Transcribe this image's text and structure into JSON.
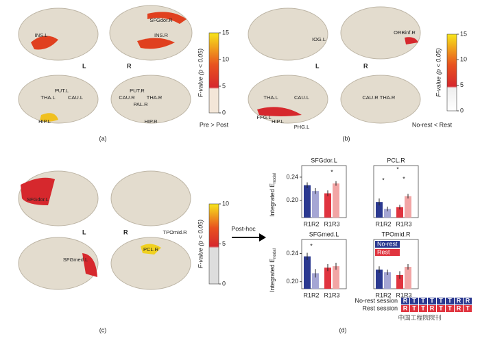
{
  "panels": {
    "a": {
      "tag": "(a)",
      "side_left": "L",
      "side_right": "R",
      "regions": [
        "INS.L",
        "SFGdor.R",
        "INS.R",
        "PUT.L",
        "THA.L",
        "CAU.L",
        "HIP.L",
        "PUT.R",
        "CAU.R",
        "THA.R",
        "PAL.R",
        "HIP.R"
      ],
      "colorbar": {
        "label": "F-value (p < 0.05)",
        "ticks": [
          0,
          5,
          10,
          15
        ],
        "lim": [
          0,
          15
        ]
      },
      "caption": "Pre > Post"
    },
    "b": {
      "tag": "(b)",
      "side_left": "L",
      "side_right": "R",
      "regions": [
        "IOG.L",
        "ORBinf.R",
        "THA.L",
        "CAU.L",
        "FFG.L",
        "HIP.L",
        "PHG.L",
        "CAU.R",
        "THA.R"
      ],
      "colorbar": {
        "label": "F-value (p < 0.05)",
        "ticks": [
          0,
          5,
          10,
          15
        ],
        "lim": [
          0,
          15
        ]
      },
      "caption": "No-rest < Rest"
    },
    "c": {
      "tag": "(c)",
      "side_left": "L",
      "side_right": "R",
      "regions": [
        "SFGdor.L",
        "TPOmid.R",
        "SFGmed.L",
        "PCL.R"
      ],
      "colorbar": {
        "label": "F-value (p < 0.05)",
        "ticks": [
          0,
          5,
          10
        ],
        "lim": [
          0,
          10
        ]
      },
      "arrow": "Post-hoc"
    },
    "d": {
      "tag": "(d)",
      "ylabel": "Integrated E",
      "ylabel_sub": "nodal",
      "charts": [
        {
          "title": "SFGdor.L",
          "groups": [
            "R1R2",
            "R1R3"
          ],
          "values": [
            0.226,
            0.216,
            0.212,
            0.229
          ],
          "errors": [
            0.005,
            0.005,
            0.005,
            0.004
          ],
          "ylim": [
            0.17,
            0.26
          ],
          "yticks": [
            {
              "value": 0.2,
              "label": "0.20"
            },
            0.24
          ],
          "annotations": [
            "*"
          ]
        },
        {
          "title": "PCL.R",
          "groups": [
            "R1R2",
            "R1R3"
          ],
          "values": [
            0.197,
            0.185,
            0.188,
            0.207
          ],
          "errors": [
            0.006,
            0.004,
            0.004,
            0.004
          ],
          "ylim": [
            0.17,
            0.26
          ],
          "annotations": [
            "*",
            "*",
            "*"
          ]
        },
        {
          "title": "SFGmed.L",
          "groups": [
            "R1R2",
            "R1R3"
          ],
          "values": [
            0.236,
            0.212,
            0.22,
            0.222
          ],
          "errors": [
            0.005,
            0.006,
            0.005,
            0.005
          ],
          "ylim": [
            0.19,
            0.26
          ],
          "yticks": [
            {
              "value": 0.2,
              "label": "0.20"
            },
            0.24
          ],
          "annotations": [
            "*"
          ]
        },
        {
          "title": "TPOmid.R",
          "groups": [
            "R1R2",
            "R1R3"
          ],
          "values": [
            0.205,
            0.2,
            0.195,
            0.21
          ],
          "errors": [
            0.006,
            0.005,
            0.007,
            0.005
          ],
          "ylim": [
            0.17,
            0.26
          ],
          "legend": [
            "No-rest",
            "Rest"
          ]
        }
      ],
      "colors": [
        "#2b3990",
        "#a5a6d4",
        "#e0343f",
        "#f2a5a5"
      ],
      "sessions": [
        {
          "name": "No-rest session",
          "cells": [
            "R",
            "T",
            "T",
            "T",
            "T",
            "T",
            "R",
            "R"
          ],
          "color": "#2b3990"
        },
        {
          "name": "Rest session",
          "cells": [
            "R",
            "T",
            "T",
            "R",
            "T",
            "T",
            "R",
            "T"
          ],
          "color": "#e0343f"
        }
      ]
    }
  },
  "watermark": "中国工程院院刊"
}
